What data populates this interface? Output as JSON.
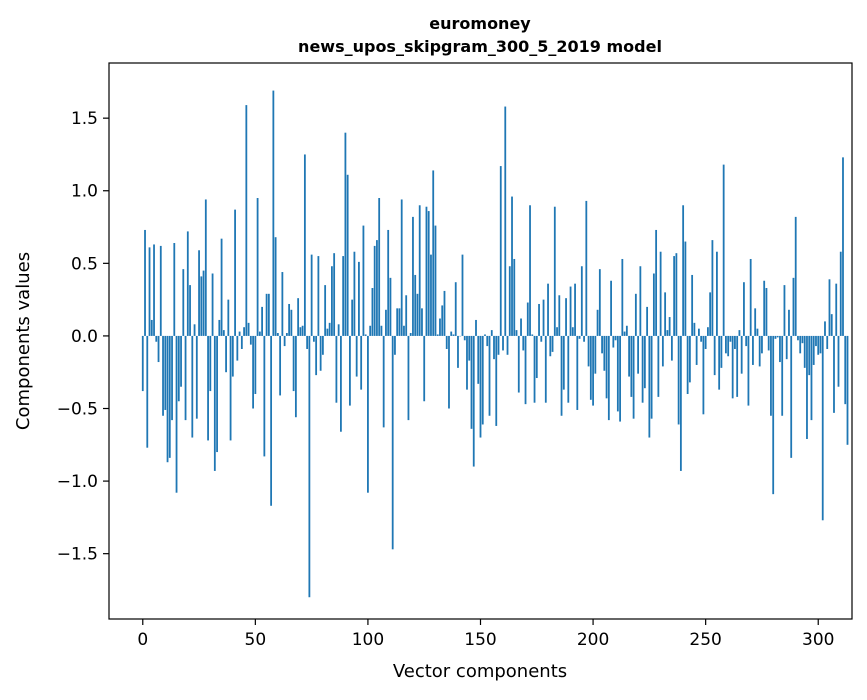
{
  "chart_data": {
    "type": "bar",
    "title": "euromoney",
    "subtitle": "news_upos_skipgram_300_5_2019 model",
    "xlabel": "Vector components",
    "ylabel": "Components values",
    "xlim": [
      -15,
      315
    ],
    "ylim": [
      -1.95,
      1.88
    ],
    "x_ticks": [
      0,
      50,
      100,
      150,
      200,
      250,
      300
    ],
    "x_tick_labels": [
      "0",
      "50",
      "100",
      "150",
      "200",
      "250",
      "300"
    ],
    "y_ticks": [
      -1.5,
      -1.0,
      -0.5,
      0.0,
      0.5,
      1.0,
      1.5
    ],
    "y_tick_labels": [
      "−1.5",
      "−1.0",
      "−0.5",
      "0.0",
      "0.5",
      "1.0",
      "1.5"
    ],
    "grid": false,
    "bar_color": "#1f77b4",
    "values": [
      -0.38,
      0.73,
      -0.77,
      0.61,
      0.11,
      0.63,
      -0.04,
      -0.18,
      0.62,
      -0.55,
      -0.51,
      -0.87,
      -0.84,
      -0.58,
      0.64,
      -1.08,
      -0.45,
      -0.35,
      0.46,
      -0.58,
      0.72,
      0.35,
      -0.7,
      0.08,
      -0.57,
      0.59,
      0.41,
      0.45,
      0.94,
      -0.72,
      -0.38,
      0.43,
      -0.93,
      -0.8,
      0.11,
      0.67,
      0.04,
      -0.25,
      0.25,
      -0.72,
      -0.28,
      0.87,
      -0.17,
      0.03,
      -0.09,
      0.06,
      1.59,
      0.09,
      -0.06,
      -0.5,
      -0.4,
      0.95,
      0.03,
      0.2,
      -0.83,
      0.29,
      0.29,
      -1.17,
      1.69,
      0.68,
      0.02,
      -0.41,
      0.44,
      -0.07,
      0.02,
      0.22,
      0.18,
      -0.38,
      -0.56,
      0.26,
      0.06,
      0.07,
      1.25,
      -0.09,
      -1.8,
      0.56,
      -0.04,
      -0.27,
      0.55,
      -0.24,
      -0.13,
      0.35,
      0.05,
      0.09,
      0.48,
      0.57,
      -0.46,
      0.08,
      -0.66,
      0.55,
      1.4,
      1.11,
      -0.48,
      0.25,
      0.58,
      -0.28,
      0.51,
      -0.37,
      0.76,
      0.01,
      -1.08,
      0.07,
      0.33,
      0.62,
      0.66,
      0.95,
      0.07,
      -0.63,
      0.18,
      0.73,
      0.4,
      -1.47,
      -0.13,
      0.19,
      0.19,
      0.94,
      0.07,
      0.28,
      -0.58,
      0.02,
      0.82,
      0.42,
      0.29,
      0.9,
      0.19,
      -0.45,
      0.89,
      0.86,
      0.56,
      1.14,
      0.76,
      0.01,
      0.12,
      0.21,
      0.31,
      -0.09,
      -0.5,
      0.03,
      0.01,
      0.37,
      -0.22,
      0.0,
      0.56,
      -0.03,
      -0.37,
      -0.17,
      -0.64,
      -0.9,
      0.11,
      -0.33,
      -0.7,
      -0.61,
      0.01,
      -0.07,
      -0.55,
      0.04,
      -0.16,
      -0.62,
      -0.13,
      1.17,
      -0.1,
      1.58,
      -0.13,
      0.48,
      0.96,
      0.53,
      0.04,
      -0.39,
      0.12,
      -0.1,
      -0.47,
      0.23,
      0.9,
      0.01,
      -0.46,
      -0.29,
      0.22,
      -0.04,
      0.25,
      -0.46,
      0.36,
      -0.14,
      -0.11,
      0.89,
      0.06,
      0.28,
      -0.55,
      -0.37,
      0.26,
      -0.46,
      0.34,
      0.06,
      0.36,
      -0.51,
      -0.02,
      0.48,
      -0.04,
      0.93,
      -0.21,
      -0.44,
      -0.48,
      -0.26,
      0.18,
      0.46,
      -0.12,
      -0.24,
      -0.43,
      -0.58,
      0.38,
      -0.08,
      -0.03,
      -0.52,
      -0.59,
      0.53,
      0.03,
      0.07,
      -0.28,
      -0.42,
      -0.57,
      0.29,
      -0.26,
      0.48,
      -0.46,
      -0.36,
      0.2,
      -0.7,
      -0.57,
      0.43,
      0.73,
      -0.42,
      0.58,
      -0.21,
      0.3,
      0.04,
      0.13,
      -0.17,
      0.55,
      0.57,
      -0.61,
      -0.93,
      0.9,
      0.65,
      -0.4,
      -0.32,
      0.42,
      0.09,
      -0.2,
      0.05,
      -0.04,
      -0.54,
      -0.09,
      0.06,
      0.3,
      0.66,
      -0.27,
      0.58,
      -0.37,
      -0.22,
      1.18,
      -0.12,
      -0.14,
      -0.04,
      -0.43,
      -0.09,
      -0.42,
      0.04,
      -0.26,
      0.37,
      -0.07,
      -0.48,
      0.53,
      -0.2,
      0.19,
      0.05,
      -0.21,
      -0.12,
      0.38,
      0.33,
      -0.1,
      -0.55,
      -1.09,
      -0.02,
      -0.01,
      -0.18,
      -0.55,
      0.35,
      -0.16,
      0.18,
      -0.84,
      0.4,
      0.82,
      -0.03,
      -0.12,
      -0.05,
      -0.22,
      -0.71,
      -0.27,
      -0.58,
      -0.2,
      -0.07,
      -0.13,
      -0.12,
      -1.27,
      0.1,
      -0.09,
      0.39,
      0.15,
      -0.53,
      0.36,
      -0.35,
      0.58,
      1.23,
      -0.47,
      -0.75
    ]
  }
}
